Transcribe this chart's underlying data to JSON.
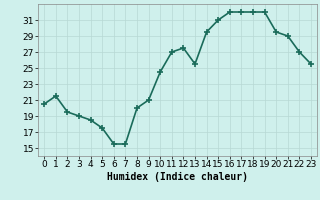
{
  "x": [
    0,
    1,
    2,
    3,
    4,
    5,
    6,
    7,
    8,
    9,
    10,
    11,
    12,
    13,
    14,
    15,
    16,
    17,
    18,
    19,
    20,
    21,
    22,
    23
  ],
  "y": [
    20.5,
    21.5,
    19.5,
    19.0,
    18.5,
    17.5,
    15.5,
    15.5,
    20.0,
    21.0,
    24.5,
    27.0,
    27.5,
    25.5,
    29.5,
    31.0,
    32.0,
    32.0,
    32.0,
    32.0,
    29.5,
    29.0,
    27.0,
    25.5
  ],
  "xlabel": "Humidex (Indice chaleur)",
  "ylabel": "",
  "xlim": [
    -0.5,
    23.5
  ],
  "ylim": [
    14,
    33
  ],
  "yticks": [
    15,
    17,
    19,
    21,
    23,
    25,
    27,
    29,
    31
  ],
  "xticks": [
    0,
    1,
    2,
    3,
    4,
    5,
    6,
    7,
    8,
    9,
    10,
    11,
    12,
    13,
    14,
    15,
    16,
    17,
    18,
    19,
    20,
    21,
    22,
    23
  ],
  "line_color": "#1a6b5a",
  "marker": "+",
  "marker_size": 4,
  "line_width": 1.2,
  "bg_color": "#cff0ec",
  "grid_color": "#b8d8d4",
  "xlabel_fontsize": 7,
  "tick_fontsize": 6.5
}
